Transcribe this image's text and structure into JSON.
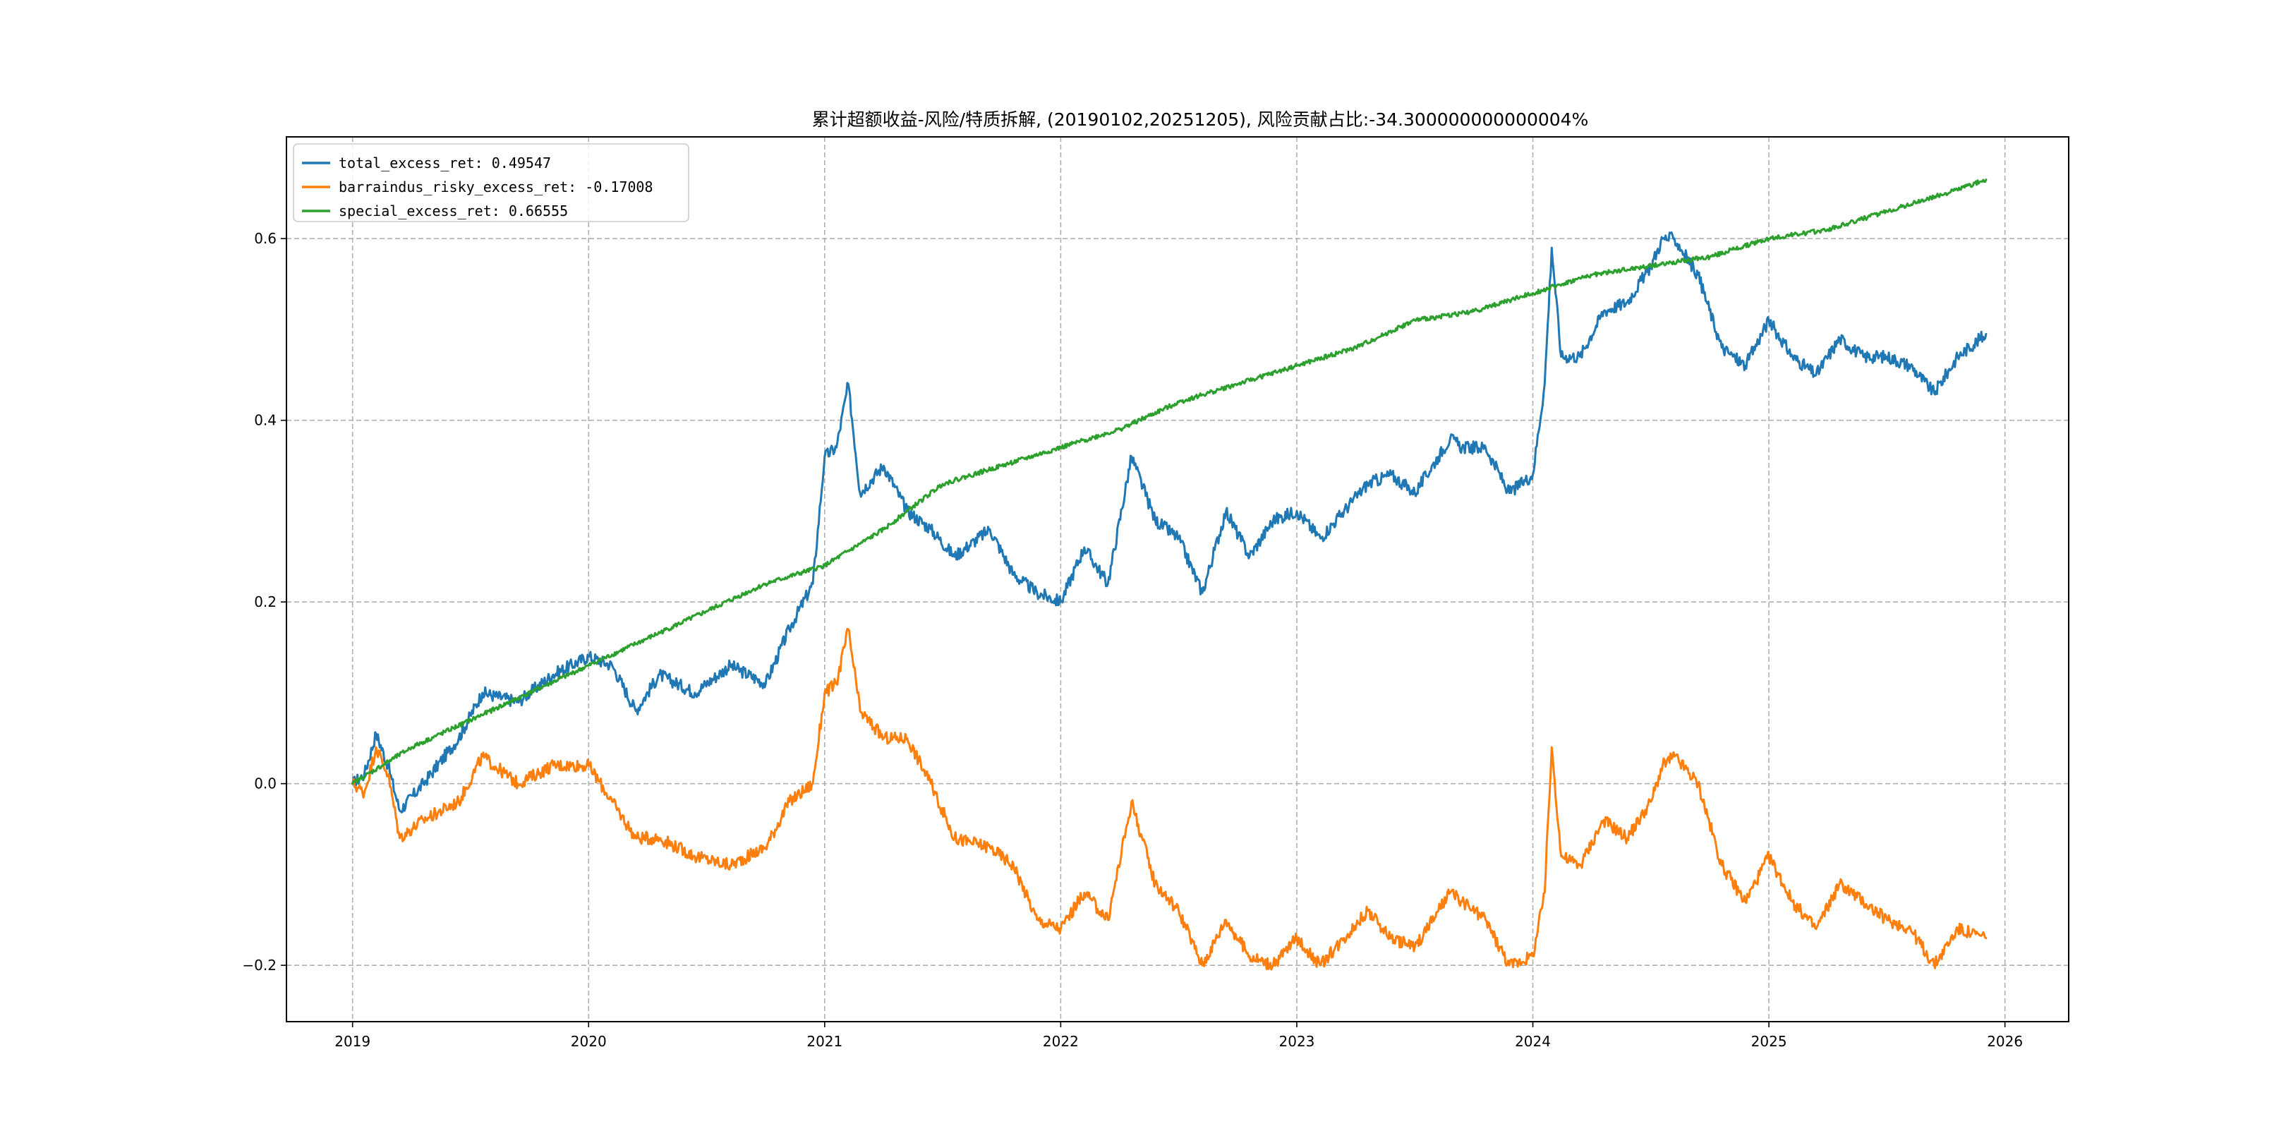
{
  "chart_data": {
    "type": "line",
    "title": "累计超额收益-风险/特质拆解, (20190102,20251205), 风险贡献占比:-34.300000000000004%",
    "xlabel": "",
    "ylabel": "",
    "xlim": [
      2018.72,
      2026.27
    ],
    "ylim": [
      -0.262,
      0.712
    ],
    "x_ticks": [
      2019,
      2020,
      2021,
      2022,
      2023,
      2024,
      2025,
      2026
    ],
    "x_tick_labels": [
      "2019",
      "2020",
      "2021",
      "2022",
      "2023",
      "2024",
      "2025",
      "2026"
    ],
    "y_ticks": [
      -0.2,
      0.0,
      0.2,
      0.4,
      0.6
    ],
    "y_tick_labels": [
      "−0.2",
      "0.0",
      "0.2",
      "0.4",
      "0.6"
    ],
    "grid": true,
    "legend_position": "top-left",
    "series": [
      {
        "name": "total_excess_ret",
        "legend_label": "total_excess_ret: 0.49547",
        "color": "#1f77b4",
        "x": [
          2019.0,
          2019.05,
          2019.1,
          2019.15,
          2019.2,
          2019.3,
          2019.45,
          2019.55,
          2019.7,
          2019.85,
          2020.0,
          2020.1,
          2020.2,
          2020.3,
          2020.45,
          2020.6,
          2020.75,
          2020.85,
          2020.95,
          2021.0,
          2021.05,
          2021.1,
          2021.15,
          2021.25,
          2021.35,
          2021.45,
          2021.55,
          2021.7,
          2021.8,
          2021.9,
          2022.0,
          2022.1,
          2022.2,
          2022.3,
          2022.4,
          2022.5,
          2022.6,
          2022.7,
          2022.8,
          2022.9,
          2023.0,
          2023.1,
          2023.2,
          2023.3,
          2023.4,
          2023.5,
          2023.6,
          2023.65,
          2023.7,
          2023.8,
          2023.9,
          2024.0,
          2024.05,
          2024.08,
          2024.12,
          2024.2,
          2024.3,
          2024.4,
          2024.5,
          2024.55,
          2024.6,
          2024.7,
          2024.8,
          2024.9,
          2025.0,
          2025.1,
          2025.2,
          2025.3,
          2025.4,
          2025.5,
          2025.6,
          2025.7,
          2025.8,
          2025.92
        ],
        "y": [
          0.0,
          0.01,
          0.055,
          0.02,
          -0.03,
          0.0,
          0.05,
          0.1,
          0.09,
          0.12,
          0.14,
          0.13,
          0.08,
          0.12,
          0.1,
          0.13,
          0.11,
          0.17,
          0.22,
          0.36,
          0.37,
          0.44,
          0.32,
          0.35,
          0.3,
          0.28,
          0.25,
          0.28,
          0.23,
          0.21,
          0.2,
          0.26,
          0.22,
          0.36,
          0.29,
          0.27,
          0.21,
          0.3,
          0.25,
          0.29,
          0.3,
          0.27,
          0.3,
          0.33,
          0.34,
          0.32,
          0.36,
          0.38,
          0.37,
          0.37,
          0.32,
          0.34,
          0.44,
          0.59,
          0.47,
          0.47,
          0.52,
          0.53,
          0.57,
          0.6,
          0.6,
          0.56,
          0.48,
          0.46,
          0.51,
          0.47,
          0.45,
          0.49,
          0.47,
          0.47,
          0.46,
          0.43,
          0.47,
          0.495
        ]
      },
      {
        "name": "barraindus_risky_excess_ret",
        "legend_label": "barraindus_risky_excess_ret: -0.17008",
        "color": "#ff7f0e",
        "x": [
          2019.0,
          2019.05,
          2019.1,
          2019.15,
          2019.2,
          2019.3,
          2019.45,
          2019.55,
          2019.7,
          2019.85,
          2020.0,
          2020.1,
          2020.2,
          2020.3,
          2020.45,
          2020.6,
          2020.75,
          2020.85,
          2020.95,
          2021.0,
          2021.05,
          2021.1,
          2021.15,
          2021.25,
          2021.35,
          2021.45,
          2021.55,
          2021.7,
          2021.8,
          2021.9,
          2022.0,
          2022.1,
          2022.2,
          2022.3,
          2022.4,
          2022.5,
          2022.6,
          2022.7,
          2022.8,
          2022.9,
          2023.0,
          2023.1,
          2023.2,
          2023.3,
          2023.4,
          2023.5,
          2023.6,
          2023.65,
          2023.7,
          2023.8,
          2023.9,
          2024.0,
          2024.05,
          2024.08,
          2024.12,
          2024.2,
          2024.3,
          2024.4,
          2024.5,
          2024.55,
          2024.6,
          2024.7,
          2024.8,
          2024.9,
          2025.0,
          2025.1,
          2025.2,
          2025.3,
          2025.4,
          2025.5,
          2025.6,
          2025.7,
          2025.8,
          2025.92
        ],
        "y": [
          0.0,
          -0.01,
          0.04,
          0.01,
          -0.06,
          -0.04,
          -0.02,
          0.03,
          0.0,
          0.02,
          0.02,
          -0.02,
          -0.06,
          -0.06,
          -0.08,
          -0.09,
          -0.07,
          -0.02,
          0.0,
          0.1,
          0.11,
          0.17,
          0.08,
          0.05,
          0.05,
          0.0,
          -0.06,
          -0.07,
          -0.09,
          -0.15,
          -0.16,
          -0.12,
          -0.15,
          -0.02,
          -0.11,
          -0.14,
          -0.2,
          -0.15,
          -0.19,
          -0.2,
          -0.17,
          -0.2,
          -0.17,
          -0.14,
          -0.17,
          -0.18,
          -0.14,
          -0.12,
          -0.13,
          -0.15,
          -0.2,
          -0.19,
          -0.12,
          0.04,
          -0.08,
          -0.09,
          -0.04,
          -0.06,
          -0.02,
          0.02,
          0.03,
          0.0,
          -0.09,
          -0.13,
          -0.08,
          -0.13,
          -0.16,
          -0.11,
          -0.13,
          -0.15,
          -0.16,
          -0.2,
          -0.16,
          -0.17
        ]
      },
      {
        "name": "special_excess_ret",
        "legend_label": "special_excess_ret: 0.66555",
        "color": "#2ca02c",
        "x": [
          2019.0,
          2019.25,
          2019.5,
          2019.75,
          2020.0,
          2020.25,
          2020.5,
          2020.75,
          2021.0,
          2021.25,
          2021.5,
          2021.75,
          2022.0,
          2022.25,
          2022.5,
          2022.75,
          2023.0,
          2023.25,
          2023.5,
          2023.75,
          2024.0,
          2024.25,
          2024.5,
          2024.75,
          2025.0,
          2025.25,
          2025.5,
          2025.75,
          2025.92
        ],
        "y": [
          0.0,
          0.04,
          0.07,
          0.1,
          0.13,
          0.16,
          0.19,
          0.22,
          0.24,
          0.28,
          0.33,
          0.35,
          0.37,
          0.39,
          0.42,
          0.44,
          0.46,
          0.48,
          0.51,
          0.52,
          0.54,
          0.56,
          0.57,
          0.58,
          0.6,
          0.61,
          0.63,
          0.65,
          0.665
        ]
      }
    ]
  }
}
